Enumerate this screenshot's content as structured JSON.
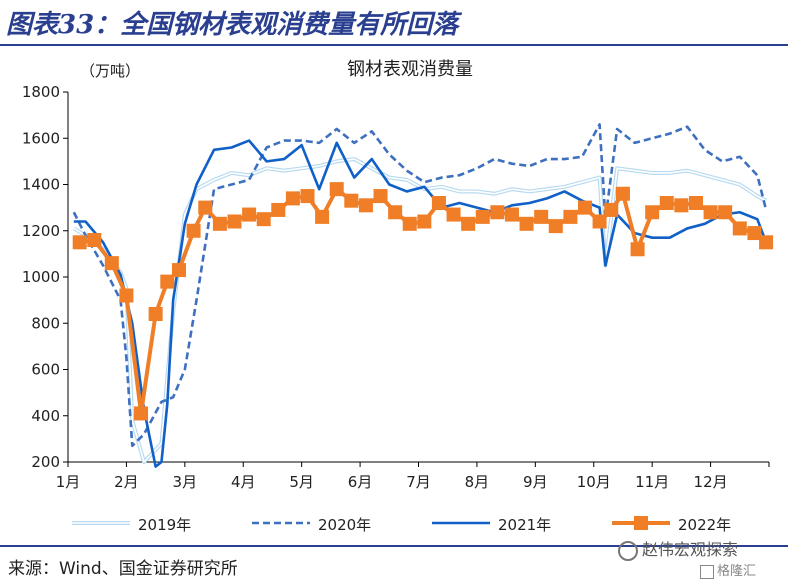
{
  "header": {
    "figure_title": "图表33：全国钢材表观消费量有所回落"
  },
  "footer": {
    "source": "来源：Wind、国金证券研究所"
  },
  "watermark": {
    "text": "赵伟宏观探索",
    "badge": "格隆汇"
  },
  "chart_data": {
    "type": "line",
    "title": "钢材表观消费量",
    "ylabel": "（万吨）",
    "xlabel": "",
    "ylim": [
      200,
      1800
    ],
    "yticks": [
      "200",
      "400",
      "600",
      "800",
      "1000",
      "1200",
      "1400",
      "1600",
      "1800"
    ],
    "x_ticks": [
      "1月",
      "2月",
      "3月",
      "4月",
      "5月",
      "6月",
      "7月",
      "8月",
      "9月",
      "10月",
      "11月",
      "12月"
    ],
    "x_range": [
      1,
      13
    ],
    "legend_position": "bottom",
    "series": [
      {
        "name": "2019年",
        "style": "double-light",
        "color": "#b8daf0",
        "x": [
          1.1,
          1.3,
          1.6,
          1.9,
          2.0,
          2.1,
          2.3,
          2.6,
          2.8,
          3.0,
          3.2,
          3.5,
          3.8,
          4.1,
          4.4,
          4.7,
          5.0,
          5.3,
          5.6,
          5.9,
          6.2,
          6.5,
          6.8,
          7.1,
          7.4,
          7.7,
          8.0,
          8.3,
          8.6,
          8.9,
          9.2,
          9.5,
          9.8,
          10.1,
          10.2,
          10.4,
          10.7,
          11.0,
          11.3,
          11.6,
          11.9,
          12.2,
          12.5,
          12.8,
          12.95
        ],
        "values": [
          1210,
          1180,
          1120,
          1020,
          950,
          380,
          200,
          280,
          850,
          1270,
          1380,
          1420,
          1450,
          1440,
          1470,
          1460,
          1470,
          1480,
          1500,
          1510,
          1470,
          1430,
          1420,
          1380,
          1390,
          1370,
          1370,
          1360,
          1380,
          1370,
          1380,
          1390,
          1410,
          1430,
          1050,
          1470,
          1460,
          1450,
          1450,
          1460,
          1440,
          1420,
          1400,
          1350,
          1330
        ]
      },
      {
        "name": "2020年",
        "style": "dashed",
        "color": "#3e70c0",
        "x": [
          1.1,
          1.3,
          1.6,
          1.9,
          2.0,
          2.1,
          2.3,
          2.6,
          2.8,
          3.0,
          3.2,
          3.5,
          3.8,
          4.1,
          4.4,
          4.7,
          5.0,
          5.3,
          5.6,
          5.9,
          6.2,
          6.5,
          6.8,
          7.1,
          7.4,
          7.7,
          8.0,
          8.3,
          8.6,
          8.9,
          9.2,
          9.5,
          9.8,
          10.1,
          10.2,
          10.4,
          10.7,
          11.0,
          11.3,
          11.6,
          11.9,
          12.2,
          12.5,
          12.8,
          12.95
        ],
        "values": [
          1280,
          1180,
          1050,
          900,
          650,
          270,
          320,
          460,
          480,
          600,
          900,
          1380,
          1400,
          1420,
          1560,
          1590,
          1590,
          1580,
          1640,
          1580,
          1630,
          1530,
          1460,
          1410,
          1430,
          1440,
          1470,
          1510,
          1490,
          1480,
          1510,
          1510,
          1520,
          1660,
          1250,
          1640,
          1580,
          1600,
          1620,
          1650,
          1550,
          1500,
          1520,
          1440,
          1290
        ]
      },
      {
        "name": "2021年",
        "style": "solid",
        "color": "#1060c8",
        "x": [
          1.1,
          1.3,
          1.6,
          1.9,
          2.1,
          2.3,
          2.5,
          2.6,
          2.7,
          2.8,
          3.0,
          3.2,
          3.5,
          3.8,
          4.1,
          4.4,
          4.7,
          5.0,
          5.3,
          5.6,
          5.9,
          6.2,
          6.5,
          6.8,
          7.1,
          7.4,
          7.7,
          8.0,
          8.3,
          8.6,
          8.9,
          9.2,
          9.5,
          9.8,
          10.1,
          10.2,
          10.4,
          10.7,
          11.0,
          11.3,
          11.6,
          11.9,
          12.2,
          12.5,
          12.8,
          12.95
        ],
        "values": [
          1240,
          1240,
          1150,
          1010,
          800,
          430,
          180,
          200,
          450,
          900,
          1230,
          1400,
          1550,
          1560,
          1590,
          1500,
          1510,
          1570,
          1380,
          1580,
          1430,
          1510,
          1400,
          1370,
          1390,
          1300,
          1320,
          1300,
          1280,
          1310,
          1320,
          1340,
          1370,
          1330,
          1300,
          1050,
          1270,
          1190,
          1170,
          1170,
          1210,
          1230,
          1270,
          1280,
          1250,
          1150
        ]
      },
      {
        "name": "2022年",
        "style": "solid-marker",
        "color": "#f07e26",
        "x": [
          1.2,
          1.45,
          1.75,
          2.0,
          2.25,
          2.5,
          2.7,
          2.9,
          3.15,
          3.35,
          3.6,
          3.85,
          4.1,
          4.35,
          4.6,
          4.85,
          5.1,
          5.35,
          5.6,
          5.85,
          6.1,
          6.35,
          6.6,
          6.85,
          7.1,
          7.35,
          7.6,
          7.85,
          8.1,
          8.35,
          8.6,
          8.85,
          9.1,
          9.35,
          9.6,
          9.85,
          10.1,
          10.3,
          10.5,
          10.75,
          11.0,
          11.25,
          11.5,
          11.75,
          12.0,
          12.25,
          12.5,
          12.75,
          12.95
        ],
        "values": [
          1150,
          1160,
          1060,
          920,
          410,
          840,
          980,
          1030,
          1200,
          1300,
          1230,
          1240,
          1270,
          1250,
          1290,
          1340,
          1350,
          1260,
          1380,
          1330,
          1310,
          1350,
          1280,
          1230,
          1240,
          1320,
          1270,
          1230,
          1260,
          1280,
          1270,
          1230,
          1260,
          1220,
          1260,
          1300,
          1240,
          1290,
          1360,
          1120,
          1280,
          1320,
          1310,
          1320,
          1280,
          1280,
          1210,
          1190,
          1150
        ]
      }
    ]
  }
}
